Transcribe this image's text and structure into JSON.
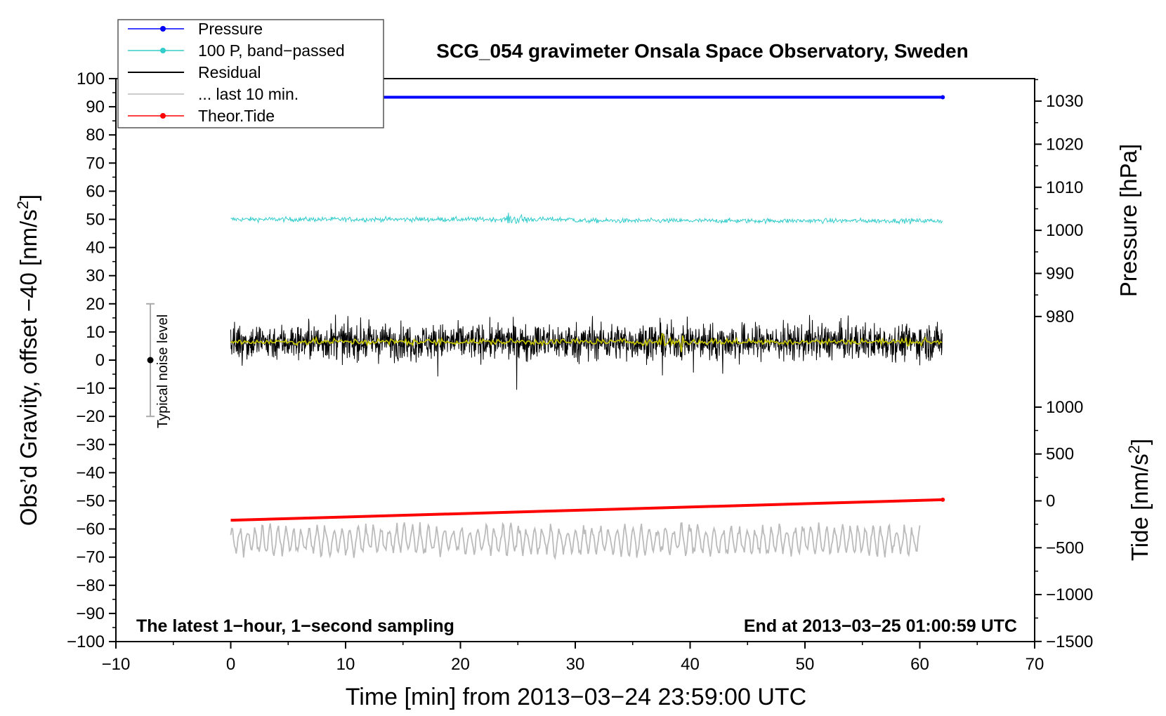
{
  "chart_data": {
    "type": "line",
    "title": "SCG_054 gravimeter Onsala Space Observatory, Sweden",
    "xlabel": "Time [min] from 2013−03−24 23:59:00 UTC",
    "ylabel_left": "Obs’d Gravity, offset −40 [nm/s",
    "ylabel_left_sup": "2",
    "ylabel_left_end": "]",
    "ylabel_right_pressure": "Pressure [hPa]",
    "ylabel_right_tide": "Tide [nm/s",
    "ylabel_right_tide_sup": "2",
    "ylabel_right_tide_end": "]",
    "xlim": [
      -10,
      70
    ],
    "ylim": [
      -100,
      100
    ],
    "x_ticks": [
      "−10",
      "0",
      "10",
      "20",
      "30",
      "40",
      "50",
      "60",
      "70"
    ],
    "x_tick_values": [
      -10,
      0,
      10,
      20,
      30,
      40,
      50,
      60,
      70
    ],
    "y_ticks": [
      "100",
      "90",
      "80",
      "70",
      "60",
      "50",
      "40",
      "30",
      "20",
      "10",
      "0",
      "−10",
      "−20",
      "−30",
      "−40",
      "−50",
      "−60",
      "−70",
      "−80",
      "−90",
      "−100"
    ],
    "y_tick_values": [
      100,
      90,
      80,
      70,
      60,
      50,
      40,
      30,
      20,
      10,
      0,
      -10,
      -20,
      -30,
      -40,
      -50,
      -60,
      -70,
      -80,
      -90,
      -100
    ],
    "pressure_axis": {
      "ticks": [
        "1030",
        "1020",
        "1010",
        "1000",
        "990",
        "980"
      ],
      "values": [
        1030,
        1020,
        1010,
        1000,
        990,
        980
      ],
      "gravity_at_1000": 46.1,
      "gravity_per_hpa": 1.53
    },
    "tide_axis": {
      "ticks": [
        "1000",
        "500",
        "0",
        "−500",
        "−1000",
        "−1500"
      ],
      "values": [
        1000,
        500,
        0,
        -500,
        -1000,
        -1500
      ],
      "gravity_at_0": -50,
      "gravity_per_unit": 0.0333
    },
    "legend": [
      {
        "name": "Pressure",
        "color": "#0000ff",
        "marker": true
      },
      {
        "name": "100 P, band−passed",
        "color": "#33cccc",
        "marker": true
      },
      {
        "name": "Residual",
        "color": "#000000",
        "marker": false
      },
      {
        "name": "... last 10 min.",
        "color": "#bbbbbb",
        "marker": false
      },
      {
        "name": "Theor.Tide",
        "color": "#ff0000",
        "marker": true
      }
    ],
    "legend_position": "top-left",
    "series": [
      {
        "name": "Pressure",
        "color": "#0000ff",
        "x_range": [
          0,
          62
        ],
        "gravity_level": 93.4,
        "pressure_hpa": 1030.5
      },
      {
        "name": "100 P, band−passed",
        "color": "#33cccc",
        "x_range": [
          0,
          62
        ],
        "gravity_level": 50,
        "noise": 0.6
      },
      {
        "name": "Residual",
        "color": "#000000",
        "x_range": [
          0,
          62
        ],
        "gravity_level": 6.5,
        "noise": 4.5
      },
      {
        "name": "Residual smoothed",
        "color": "#c8c800",
        "x_range": [
          0,
          62
        ],
        "gravity_level": 6.5,
        "noise": 0.8
      },
      {
        "name": "... last 10 min.",
        "color": "#bbbbbb",
        "x_range": [
          0,
          60
        ],
        "gravity_level": -64,
        "noise": 5
      },
      {
        "name": "Theor.Tide",
        "color": "#ff0000",
        "x_range": [
          0,
          62
        ],
        "gravity_start": -56.9,
        "gravity_end": -49.6
      }
    ],
    "noise_bar": {
      "x": -7,
      "y": 0,
      "low": -20,
      "high": 20,
      "label": "Typical noise level"
    },
    "annotations": {
      "bottom_left": "The latest 1−hour, 1−second sampling",
      "bottom_right": "End at 2013−03−25 01:00:59 UTC"
    }
  }
}
